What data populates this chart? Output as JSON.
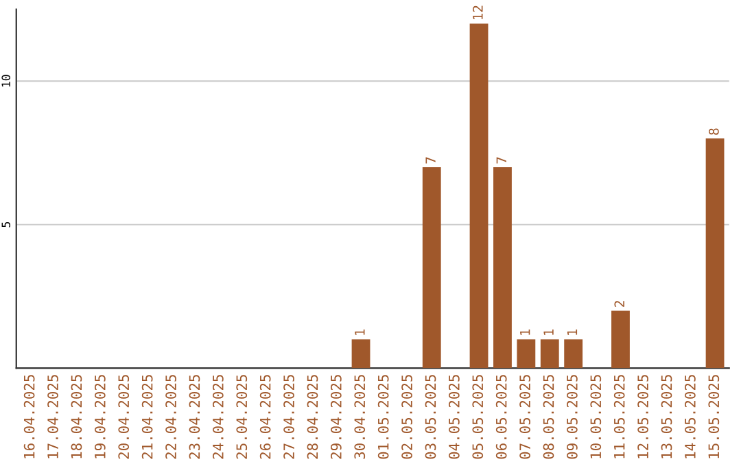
{
  "chart_data": {
    "type": "bar",
    "categories": [
      "16.04.2025",
      "17.04.2025",
      "18.04.2025",
      "19.04.2025",
      "20.04.2025",
      "21.04.2025",
      "22.04.2025",
      "23.04.2025",
      "24.04.2025",
      "25.04.2025",
      "26.04.2025",
      "27.04.2025",
      "28.04.2025",
      "29.04.2025",
      "30.04.2025",
      "01.05.2025",
      "02.05.2025",
      "03.05.2025",
      "04.05.2025",
      "05.05.2025",
      "06.05.2025",
      "07.05.2025",
      "08.05.2025",
      "09.05.2025",
      "10.05.2025",
      "11.05.2025",
      "12.05.2025",
      "13.05.2025",
      "14.05.2025",
      "15.05.2025"
    ],
    "values": [
      0,
      0,
      0,
      0,
      0,
      0,
      0,
      0,
      0,
      0,
      0,
      0,
      0,
      0,
      1,
      0,
      0,
      7,
      0,
      12,
      7,
      1,
      1,
      1,
      0,
      2,
      0,
      0,
      0,
      8
    ],
    "value_labels": [
      null,
      null,
      null,
      null,
      null,
      null,
      null,
      null,
      null,
      null,
      null,
      null,
      null,
      null,
      "1",
      null,
      null,
      "7",
      null,
      "12",
      "7",
      "1",
      "1",
      "1",
      null,
      "2",
      null,
      null,
      null,
      "8"
    ],
    "color": "#a0582b",
    "ylim": [
      0,
      12.5
    ],
    "yticks": [
      5,
      10
    ],
    "grid": "y",
    "legend": false
  }
}
